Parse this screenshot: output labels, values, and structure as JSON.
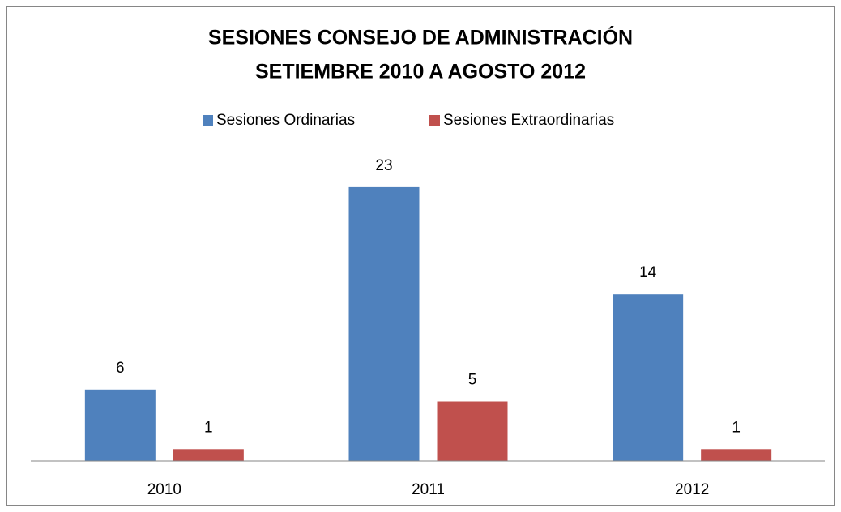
{
  "chart_data": {
    "type": "bar",
    "title": [
      "SESIONES CONSEJO DE ADMINISTRACIÓN",
      "SETIEMBRE 2010 A AGOSTO 2012"
    ],
    "categories": [
      "2010",
      "2011",
      "2012"
    ],
    "series": [
      {
        "name": "Sesiones Ordinarias",
        "color": "#4f81bd",
        "values": [
          6,
          23,
          14
        ]
      },
      {
        "name": "Sesiones Extraordinarias",
        "color": "#c0504d",
        "values": [
          1,
          5,
          1
        ]
      }
    ],
    "ylim": [
      0,
      25
    ],
    "legend": "top"
  }
}
